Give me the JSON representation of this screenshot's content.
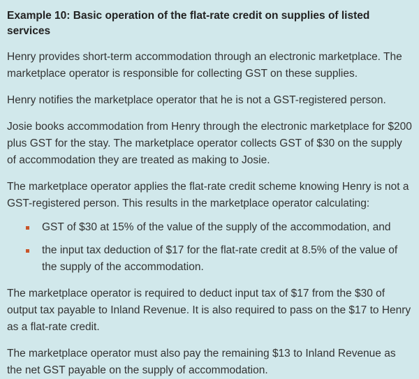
{
  "title": "Example 10: Basic operation of the flat-rate credit on supplies of listed services",
  "paragraphs_before": [
    "Henry provides short-term accommodation through an electronic marketplace. The marketplace operator is responsible for collecting GST on these supplies.",
    "Henry notifies the marketplace operator that he is not a GST-registered person.",
    "Josie books accommodation from Henry through the electronic marketplace for $200 plus GST for the stay. The marketplace operator collects GST of $30 on the supply of accommodation they are treated as making to Josie.",
    "The marketplace operator applies the flat-rate credit scheme knowing Henry is not a GST-registered person. This results in the marketplace operator calculating:"
  ],
  "bullets": [
    "GST of $30 at 15% of the value of the supply of the accommodation, and",
    "the input tax deduction of $17 for the flat-rate credit at 8.5% of the value of the supply of the accommodation."
  ],
  "paragraphs_after": [
    "The marketplace operator is required to deduct input tax of $17 from the $30 of output tax payable to Inland Revenue. It is also required to pass on the $17 to Henry as a flat-rate credit.",
    "The marketplace operator must also pay the remaining $13 to Inland Revenue as the net GST payable on the supply of accommodation."
  ],
  "colors": {
    "background": "#d1e8eb",
    "bullet": "#c8552a",
    "text": "#333333"
  }
}
